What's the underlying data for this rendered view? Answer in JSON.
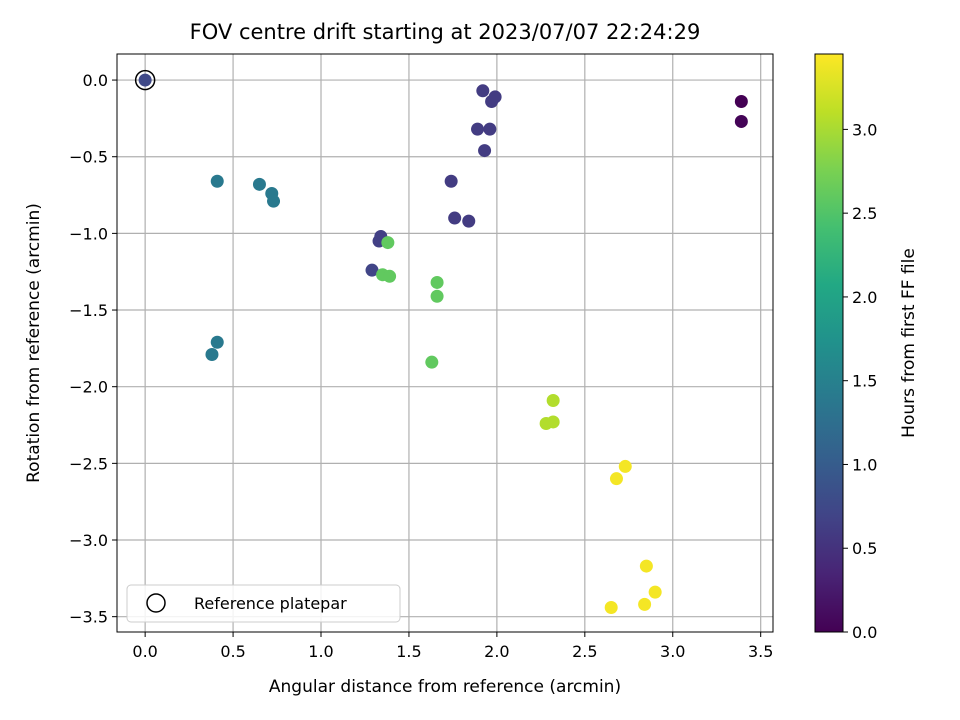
{
  "chart_data": {
    "type": "scatter",
    "title": "FOV centre drift starting at 2023/07/07 22:24:29",
    "xlabel": "Angular distance from reference (arcmin)",
    "ylabel": "Rotation from reference (arcmin)",
    "xlim": [
      -0.16,
      3.57
    ],
    "ylim": [
      -3.6,
      0.17
    ],
    "xticks": [
      0.0,
      0.5,
      1.0,
      1.5,
      2.0,
      2.5,
      3.0,
      3.5
    ],
    "xtick_labels": [
      "0.0",
      "0.5",
      "1.0",
      "1.5",
      "2.0",
      "2.5",
      "3.0",
      "3.5"
    ],
    "yticks": [
      0.0,
      -0.5,
      -1.0,
      -1.5,
      -2.0,
      -2.5,
      -3.0,
      -3.5
    ],
    "ytick_labels": [
      "0.0",
      "−0.5",
      "−1.0",
      "−1.5",
      "−2.0",
      "−2.5",
      "−3.0",
      "−3.5"
    ],
    "grid": true,
    "colormap": "viridis",
    "colorbar": {
      "label": "Hours from first FF file",
      "range": [
        0.0,
        3.45
      ],
      "ticks": [
        0.0,
        0.5,
        1.0,
        1.5,
        2.0,
        2.5,
        3.0
      ],
      "tick_labels": [
        "0.0",
        "0.5",
        "1.0",
        "1.5",
        "2.0",
        "2.5",
        "3.0"
      ]
    },
    "legend": {
      "position": "lower-left",
      "entries": [
        {
          "label": "Reference platepar",
          "marker": "open-circle"
        }
      ]
    },
    "reference_point": {
      "x": 0.0,
      "y": 0.0,
      "hours": 0.75
    },
    "points": [
      {
        "x": 3.39,
        "y": -0.14,
        "hours": 0.0
      },
      {
        "x": 3.39,
        "y": -0.27,
        "hours": 0.03
      },
      {
        "x": 1.92,
        "y": -0.07,
        "hours": 0.6
      },
      {
        "x": 1.99,
        "y": -0.11,
        "hours": 0.6
      },
      {
        "x": 1.97,
        "y": -0.14,
        "hours": 0.6
      },
      {
        "x": 1.89,
        "y": -0.32,
        "hours": 0.6
      },
      {
        "x": 1.96,
        "y": -0.32,
        "hours": 0.6
      },
      {
        "x": 1.93,
        "y": -0.46,
        "hours": 0.6
      },
      {
        "x": 1.74,
        "y": -0.66,
        "hours": 0.6
      },
      {
        "x": 1.76,
        "y": -0.9,
        "hours": 0.6
      },
      {
        "x": 1.84,
        "y": -0.92,
        "hours": 0.6
      },
      {
        "x": 1.34,
        "y": -1.02,
        "hours": 0.65
      },
      {
        "x": 1.33,
        "y": -1.05,
        "hours": 0.65
      },
      {
        "x": 1.29,
        "y": -1.24,
        "hours": 0.7
      },
      {
        "x": 0.41,
        "y": -0.66,
        "hours": 1.4
      },
      {
        "x": 0.65,
        "y": -0.68,
        "hours": 1.4
      },
      {
        "x": 0.72,
        "y": -0.74,
        "hours": 1.4
      },
      {
        "x": 0.73,
        "y": -0.79,
        "hours": 1.4
      },
      {
        "x": 0.41,
        "y": -1.71,
        "hours": 1.4
      },
      {
        "x": 0.38,
        "y": -1.79,
        "hours": 1.4
      },
      {
        "x": 1.38,
        "y": -1.06,
        "hours": 2.6
      },
      {
        "x": 1.35,
        "y": -1.27,
        "hours": 2.6
      },
      {
        "x": 1.39,
        "y": -1.28,
        "hours": 2.6
      },
      {
        "x": 1.66,
        "y": -1.32,
        "hours": 2.6
      },
      {
        "x": 1.66,
        "y": -1.41,
        "hours": 2.6
      },
      {
        "x": 1.63,
        "y": -1.84,
        "hours": 2.6
      },
      {
        "x": 2.32,
        "y": -2.09,
        "hours": 3.05
      },
      {
        "x": 2.28,
        "y": -2.24,
        "hours": 3.05
      },
      {
        "x": 2.32,
        "y": -2.23,
        "hours": 3.05
      },
      {
        "x": 2.73,
        "y": -2.52,
        "hours": 3.4
      },
      {
        "x": 2.68,
        "y": -2.6,
        "hours": 3.4
      },
      {
        "x": 2.85,
        "y": -3.17,
        "hours": 3.4
      },
      {
        "x": 2.9,
        "y": -3.34,
        "hours": 3.4
      },
      {
        "x": 2.65,
        "y": -3.44,
        "hours": 3.4
      },
      {
        "x": 2.84,
        "y": -3.42,
        "hours": 3.4
      }
    ]
  }
}
